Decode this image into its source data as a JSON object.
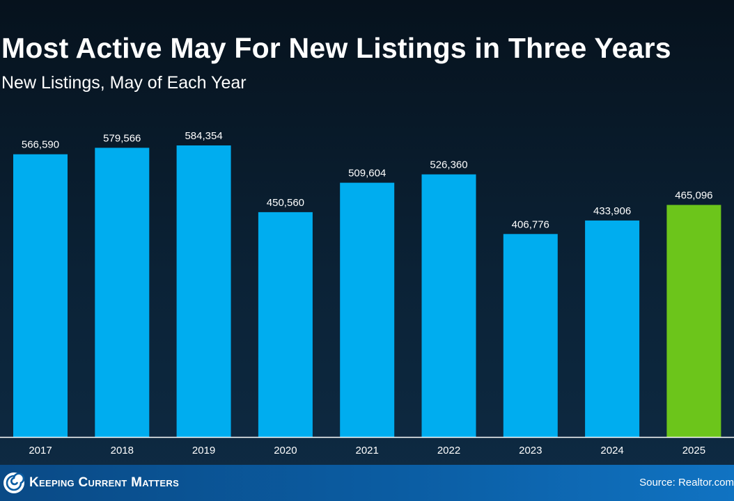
{
  "chart_data": {
    "type": "bar",
    "title": "Most Active May For New Listings in Three Years",
    "subtitle": "New Listings, May of Each Year",
    "categories": [
      "2017",
      "2018",
      "2019",
      "2020",
      "2021",
      "2022",
      "2023",
      "2024",
      "2025"
    ],
    "values": [
      566590,
      579566,
      584354,
      450560,
      509604,
      526360,
      406776,
      433906,
      465096
    ],
    "value_labels": [
      "566,590",
      "579,566",
      "584,354",
      "450,560",
      "509,604",
      "526,360",
      "406,776",
      "433,906",
      "465,096"
    ],
    "highlight_index": 8,
    "ylim": [
      0,
      600000
    ],
    "grid": false,
    "colors": {
      "bar": "#00adef",
      "highlight": "#6cc51b",
      "axis": "#ffffff",
      "label": "#ffffff"
    }
  },
  "footer": {
    "brand": "Keeping Current Matters",
    "source": "Source: Realtor.com"
  },
  "icons": {
    "brand_logo": "kcm-swirl-icon"
  }
}
